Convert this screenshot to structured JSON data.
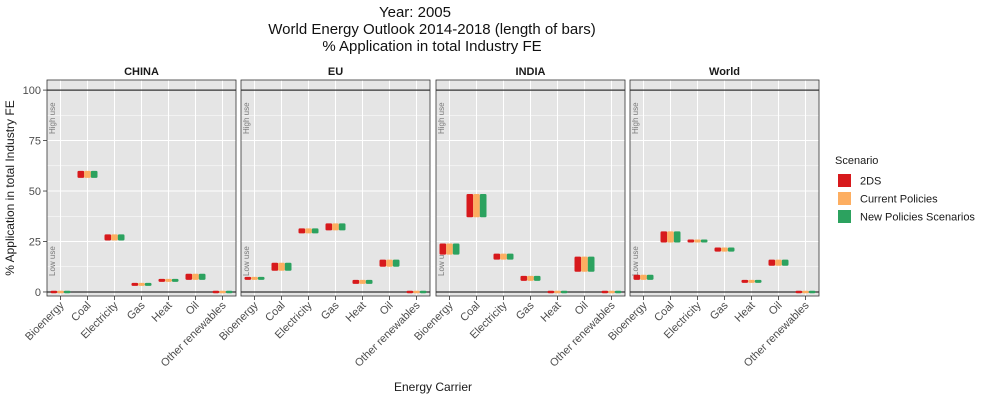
{
  "titles": {
    "line1": "Year: 2005",
    "line2": "World Energy Outlook 2014-2018 (length of bars)",
    "line3": "% Application in total Industry FE"
  },
  "colors": {
    "panel_bg": "#e5e5e5",
    "grid": "#ffffff",
    "ref_line": "#333333",
    "strip_bg": "#ffffff"
  },
  "chart_data": {
    "type": "bar",
    "xlabel": "Energy Carrier",
    "ylabel": "% Application in total Industry FE",
    "ylim": [
      -2,
      105
    ],
    "yticks": [
      0,
      25,
      50,
      75,
      100
    ],
    "grid": true,
    "legend_position": "right",
    "reference_lines": [
      0,
      100
    ],
    "use_labels": {
      "high": "High use",
      "low": "Low use"
    },
    "categories": [
      "Bioenergy",
      "Coal",
      "Electricity",
      "Gas",
      "Heat",
      "Oil",
      "Other renewables"
    ],
    "legend": {
      "title": "Scenario",
      "entries": [
        {
          "name": "2DS",
          "color": "#d7191c"
        },
        {
          "name": "Current Policies",
          "color": "#fdae61"
        },
        {
          "name": "New Policies Scenarios",
          "color": "#2ca25f"
        }
      ]
    },
    "panels": [
      {
        "name": "CHINA",
        "bars": [
          {
            "category": "Bioenergy",
            "low": 0,
            "high": 0
          },
          {
            "category": "Coal",
            "low": 56.5,
            "high": 60
          },
          {
            "category": "Electricity",
            "low": 25.5,
            "high": 28.5
          },
          {
            "category": "Gas",
            "low": 3,
            "high": 4.5
          },
          {
            "category": "Heat",
            "low": 5,
            "high": 6.5
          },
          {
            "category": "Oil",
            "low": 6,
            "high": 9
          },
          {
            "category": "Other renewables",
            "low": 0,
            "high": 0
          }
        ]
      },
      {
        "name": "EU",
        "bars": [
          {
            "category": "Bioenergy",
            "low": 6,
            "high": 7.5
          },
          {
            "category": "Coal",
            "low": 10.5,
            "high": 14.5
          },
          {
            "category": "Electricity",
            "low": 29,
            "high": 31.5
          },
          {
            "category": "Gas",
            "low": 30.5,
            "high": 34
          },
          {
            "category": "Heat",
            "low": 4,
            "high": 6
          },
          {
            "category": "Oil",
            "low": 12.5,
            "high": 16
          },
          {
            "category": "Other renewables",
            "low": 0,
            "high": 0
          }
        ]
      },
      {
        "name": "INDIA",
        "bars": [
          {
            "category": "Bioenergy",
            "low": 18.5,
            "high": 24
          },
          {
            "category": "Coal",
            "low": 37,
            "high": 48.5
          },
          {
            "category": "Electricity",
            "low": 16,
            "high": 19
          },
          {
            "category": "Gas",
            "low": 5.5,
            "high": 8
          },
          {
            "category": "Heat",
            "low": 0,
            "high": 0
          },
          {
            "category": "Oil",
            "low": 10,
            "high": 17.5
          },
          {
            "category": "Other renewables",
            "low": 0,
            "high": 0
          }
        ]
      },
      {
        "name": "World",
        "bars": [
          {
            "category": "Bioenergy",
            "low": 6,
            "high": 8.5
          },
          {
            "category": "Coal",
            "low": 24.5,
            "high": 30
          },
          {
            "category": "Electricity",
            "low": 24.5,
            "high": 26
          },
          {
            "category": "Gas",
            "low": 20,
            "high": 22
          },
          {
            "category": "Heat",
            "low": 4.5,
            "high": 6
          },
          {
            "category": "Oil",
            "low": 13,
            "high": 16
          },
          {
            "category": "Other renewables",
            "low": 0,
            "high": 0
          }
        ]
      }
    ]
  }
}
